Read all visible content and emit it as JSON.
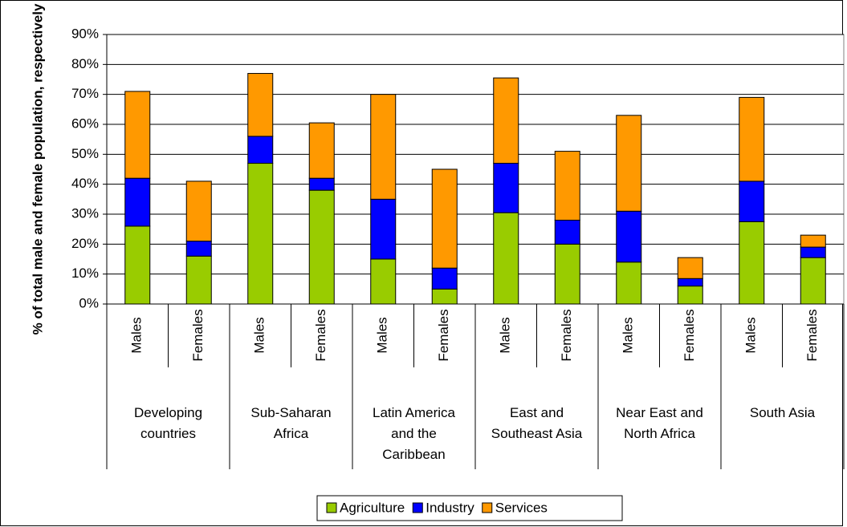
{
  "chart_data": {
    "type": "stacked_bar",
    "y_label": "% of total male and female population, respectively",
    "categories": [
      "Males",
      "Females",
      "Males",
      "Females",
      "Males",
      "Females",
      "Males",
      "Females",
      "Males",
      "Females",
      "Males",
      "Females"
    ],
    "groups": [
      "Developing countries",
      "Sub-Saharan Africa",
      "Latin America and the Caribbean",
      "East and Southeast Asia",
      "Near East and North Africa",
      "South Asia"
    ],
    "series": [
      {
        "name": "Agriculture",
        "color": "#99cc00",
        "values": [
          26,
          16,
          47,
          38,
          15,
          5,
          30.5,
          20,
          14,
          6,
          27.5,
          15.5
        ]
      },
      {
        "name": "Industry",
        "color": "#0000ff",
        "values": [
          16,
          5,
          9,
          4,
          20,
          7,
          16.5,
          8,
          17,
          2.5,
          13.5,
          3.5
        ]
      },
      {
        "name": "Services",
        "color": "#ff9900",
        "values": [
          29,
          20,
          21,
          18.5,
          35,
          33,
          28.5,
          23,
          32,
          7,
          28,
          4
        ]
      }
    ],
    "ylim": [
      0,
      90
    ],
    "yticks": [
      {
        "value": 0,
        "label": "0%"
      },
      {
        "value": 10,
        "label": "10%"
      },
      {
        "value": 20,
        "label": "20%"
      },
      {
        "value": 30,
        "label": "30%"
      },
      {
        "value": 40,
        "label": "40%"
      },
      {
        "value": 50,
        "label": "50%"
      },
      {
        "value": 60,
        "label": "60%"
      },
      {
        "value": 70,
        "label": "70%"
      },
      {
        "value": 80,
        "label": "80%"
      },
      {
        "value": 90,
        "label": "90%"
      }
    ],
    "grid": true,
    "legend": "bottom"
  }
}
